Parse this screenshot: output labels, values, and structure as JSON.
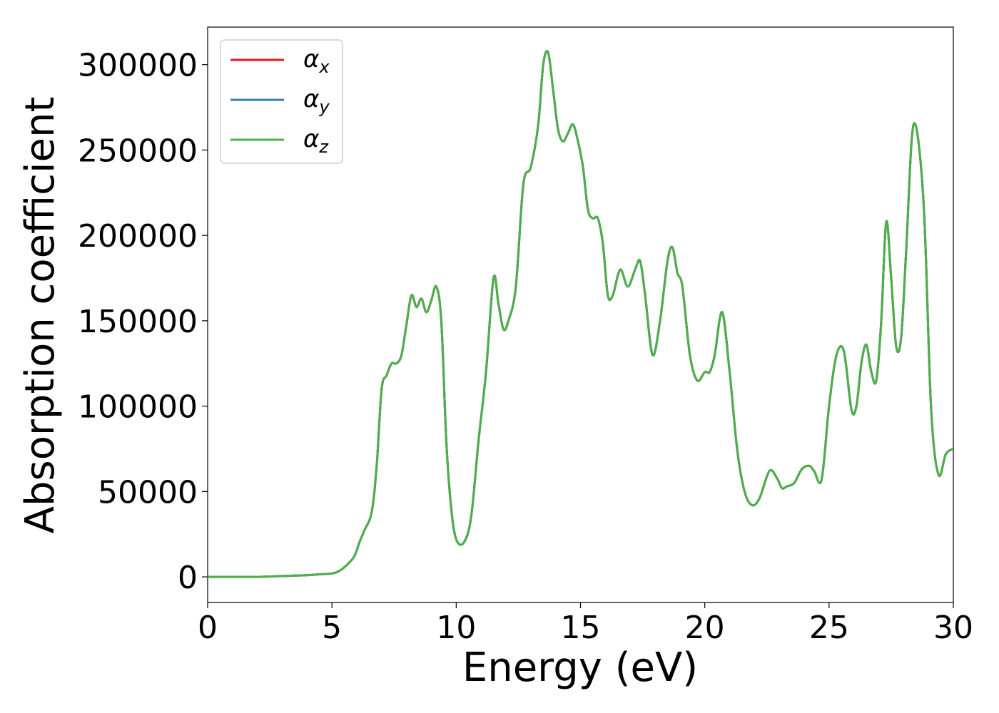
{
  "chart_data": {
    "type": "line",
    "xlabel": "Energy (eV)",
    "ylabel": "Absorption coefficient",
    "xlim": [
      0,
      30
    ],
    "ylim": [
      -15000,
      322000
    ],
    "xticks": [
      0,
      5,
      10,
      15,
      20,
      25,
      30
    ],
    "yticks": [
      0,
      50000,
      100000,
      150000,
      200000,
      250000,
      300000
    ],
    "grid": false,
    "legend_position": "top-left",
    "series": [
      {
        "name": "α",
        "subscript": "x",
        "color": "#e41a1c"
      },
      {
        "name": "α",
        "subscript": "y",
        "color": "#377eb8"
      },
      {
        "name": "α",
        "subscript": "z",
        "color": "#4daf4a"
      }
    ],
    "x": [
      0,
      1,
      2,
      3,
      4,
      4.5,
      5,
      5.3,
      5.6,
      5.9,
      6.1,
      6.3,
      6.6,
      6.8,
      7.0,
      7.2,
      7.4,
      7.6,
      7.8,
      8.0,
      8.2,
      8.4,
      8.6,
      8.8,
      9.0,
      9.2,
      9.4,
      9.6,
      9.8,
      10.0,
      10.3,
      10.6,
      10.9,
      11.2,
      11.5,
      11.7,
      11.9,
      12.1,
      12.4,
      12.7,
      13.0,
      13.3,
      13.5,
      13.7,
      13.9,
      14.1,
      14.3,
      14.5,
      14.7,
      14.9,
      15.1,
      15.3,
      15.5,
      15.7,
      15.9,
      16.1,
      16.3,
      16.6,
      16.9,
      17.2,
      17.4,
      17.6,
      17.9,
      18.2,
      18.5,
      18.7,
      18.9,
      19.1,
      19.4,
      19.7,
      20.0,
      20.2,
      20.4,
      20.7,
      21.0,
      21.3,
      21.6,
      21.9,
      22.2,
      22.6,
      22.9,
      23.1,
      23.3,
      23.6,
      23.9,
      24.2,
      24.4,
      24.7,
      25.0,
      25.3,
      25.6,
      25.9,
      26.1,
      26.3,
      26.5,
      26.7,
      26.9,
      27.1,
      27.3,
      27.5,
      27.7,
      27.9,
      28.1,
      28.4,
      28.8,
      29.1,
      29.4,
      29.7,
      30.0
    ],
    "values": [
      0,
      0,
      0,
      500,
      1000,
      1500,
      2000,
      3500,
      7000,
      12000,
      20000,
      27000,
      38000,
      65000,
      110000,
      118000,
      125000,
      125000,
      130000,
      148000,
      165000,
      158000,
      163000,
      155000,
      162000,
      170000,
      150000,
      80000,
      40000,
      22000,
      20000,
      35000,
      80000,
      120000,
      175000,
      160000,
      145000,
      150000,
      170000,
      230000,
      240000,
      265000,
      300000,
      307000,
      285000,
      262000,
      255000,
      260000,
      265000,
      255000,
      240000,
      215000,
      210000,
      210000,
      195000,
      165000,
      165000,
      180000,
      170000,
      180000,
      185000,
      165000,
      130000,
      150000,
      185000,
      193000,
      178000,
      170000,
      130000,
      115000,
      120000,
      120000,
      130000,
      155000,
      120000,
      75000,
      50000,
      42000,
      46000,
      62000,
      58000,
      52000,
      53000,
      55000,
      63000,
      65000,
      62000,
      57000,
      100000,
      130000,
      132000,
      98000,
      100000,
      125000,
      136000,
      120000,
      115000,
      150000,
      208000,
      175000,
      135000,
      140000,
      190000,
      265000,
      220000,
      100000,
      60000,
      72000,
      75000
    ]
  }
}
